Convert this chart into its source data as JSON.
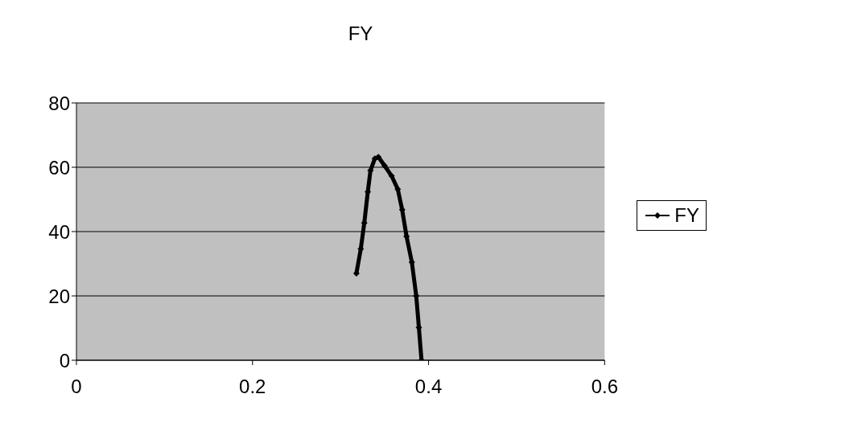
{
  "chart_data": {
    "type": "line",
    "title": "FY",
    "x": [
      0.318,
      0.323,
      0.327,
      0.331,
      0.334,
      0.339,
      0.343,
      0.35,
      0.358,
      0.365,
      0.37,
      0.375,
      0.381,
      0.386,
      0.389,
      0.392
    ],
    "series": [
      {
        "name": "FY",
        "color": "#000000",
        "values": [
          27,
          34.6,
          42.7,
          52.4,
          59,
          62.7,
          63.2,
          60.5,
          57.3,
          53.2,
          46.8,
          38.5,
          30.5,
          20,
          10.2,
          0
        ]
      }
    ],
    "xlim": [
      0,
      0.6
    ],
    "xticks": [
      0,
      0.2,
      0.4,
      0.6
    ],
    "ylim": [
      0,
      80
    ],
    "yticks": [
      0,
      20,
      40,
      60,
      80
    ],
    "grid": "y",
    "legend": "right",
    "marker": "diamond",
    "line_style": "solid"
  }
}
